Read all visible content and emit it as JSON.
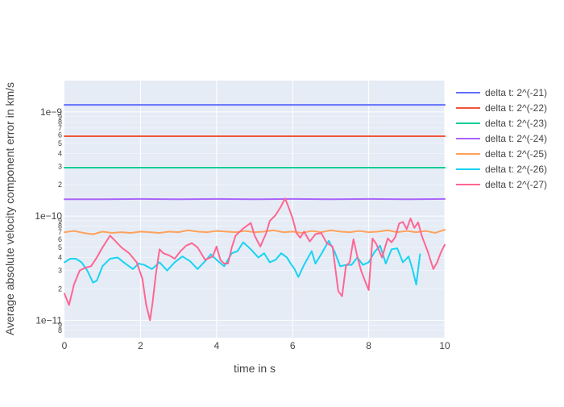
{
  "chart_data": {
    "type": "line",
    "xlabel": "time in s",
    "ylabel": "Average absolute velocity component error in km/s",
    "xlim": [
      0,
      10
    ],
    "ylim": [
      6.8e-12,
      2e-09
    ],
    "y_scale": "log",
    "grid": true,
    "legend_position": "right",
    "background": "#e5ecf6",
    "x_ticks": [
      0,
      2,
      4,
      6,
      8,
      10
    ],
    "x_tick_labels": [
      "0",
      "2",
      "4",
      "6",
      "8",
      "10"
    ],
    "y_major_ticks": [
      1e-11,
      1e-10,
      1e-09
    ],
    "y_major_tick_labels": [
      "1e−11",
      "1e−10",
      "1e−9"
    ],
    "y_minor_ticks": [
      {
        "value": 8e-12,
        "label": "8"
      },
      {
        "value": 9e-12,
        "label": "9"
      },
      {
        "value": 2e-11,
        "label": "2"
      },
      {
        "value": 3e-11,
        "label": "3"
      },
      {
        "value": 4e-11,
        "label": "4"
      },
      {
        "value": 5e-11,
        "label": "5"
      },
      {
        "value": 6e-11,
        "label": "6"
      },
      {
        "value": 7e-11,
        "label": "7"
      },
      {
        "value": 8e-11,
        "label": "8"
      },
      {
        "value": 9e-11,
        "label": "9"
      },
      {
        "value": 2e-10,
        "label": "2"
      },
      {
        "value": 3e-10,
        "label": "3"
      },
      {
        "value": 4e-10,
        "label": "4"
      },
      {
        "value": 5e-10,
        "label": "5"
      },
      {
        "value": 6e-10,
        "label": "6"
      },
      {
        "value": 7e-10,
        "label": "7"
      },
      {
        "value": 8e-10,
        "label": "8"
      },
      {
        "value": 9e-10,
        "label": "9"
      }
    ],
    "series": [
      {
        "name": "delta t: 2^(-21)",
        "color": "#636efa",
        "x": [
          0,
          10
        ],
        "y": [
          1.17e-09,
          1.17e-09
        ]
      },
      {
        "name": "delta t: 2^(-22)",
        "color": "#ef553b",
        "x": [
          0,
          10
        ],
        "y": [
          5.85e-10,
          5.85e-10
        ]
      },
      {
        "name": "delta t: 2^(-23)",
        "color": "#00cc96",
        "x": [
          0,
          10
        ],
        "y": [
          2.92e-10,
          2.92e-10
        ]
      },
      {
        "name": "delta t: 2^(-24)",
        "color": "#ab63fa",
        "x": [
          0,
          1,
          2,
          3,
          4,
          5,
          6,
          7,
          8,
          9,
          10
        ],
        "y": [
          1.45e-10,
          1.45e-10,
          1.46e-10,
          1.45e-10,
          1.46e-10,
          1.45e-10,
          1.46e-10,
          1.45e-10,
          1.46e-10,
          1.45e-10,
          1.46e-10
        ]
      },
      {
        "name": "delta t: 2^(-25)",
        "color": "#ffa15a",
        "x": [
          0,
          0.25,
          0.5,
          0.75,
          1.0,
          1.25,
          1.5,
          1.75,
          2.0,
          2.25,
          2.5,
          2.75,
          3.0,
          3.25,
          3.5,
          3.75,
          4.0,
          4.25,
          4.5,
          4.75,
          5.0,
          5.25,
          5.5,
          5.75,
          6.0,
          6.25,
          6.5,
          6.75,
          7.0,
          7.25,
          7.5,
          7.75,
          8.0,
          8.25,
          8.5,
          8.75,
          9.0,
          9.25,
          9.5,
          9.75,
          10.0
        ],
        "y": [
          7e-11,
          7.2e-11,
          6.9e-11,
          6.7e-11,
          7.1e-11,
          6.9e-11,
          7e-11,
          6.9e-11,
          7.1e-11,
          7e-11,
          6.9e-11,
          7.1e-11,
          7e-11,
          7.3e-11,
          7.1e-11,
          7e-11,
          7.2e-11,
          7.1e-11,
          7e-11,
          7.2e-11,
          7e-11,
          7.1e-11,
          7.3e-11,
          7e-11,
          7.1e-11,
          6.9e-11,
          7.2e-11,
          7e-11,
          7.3e-11,
          7.1e-11,
          7e-11,
          7.2e-11,
          7e-11,
          7.1e-11,
          7.3e-11,
          7e-11,
          7.2e-11,
          7e-11,
          7.2e-11,
          6.9e-11,
          7.4e-11
        ]
      },
      {
        "name": "delta t: 2^(-26)",
        "color": "#19d3f3",
        "x": [
          0,
          0.15,
          0.3,
          0.45,
          0.6,
          0.75,
          0.85,
          1.0,
          1.2,
          1.4,
          1.6,
          1.8,
          1.95,
          2.1,
          2.3,
          2.5,
          2.7,
          2.9,
          3.1,
          3.3,
          3.5,
          3.7,
          3.85,
          4.0,
          4.2,
          4.4,
          4.55,
          4.7,
          4.9,
          5.1,
          5.25,
          5.4,
          5.55,
          5.7,
          5.85,
          5.95,
          6.05,
          6.15,
          6.3,
          6.5,
          6.6,
          6.75,
          6.95,
          7.1,
          7.25,
          7.4,
          7.55,
          7.7,
          7.85,
          8.0,
          8.15,
          8.3,
          8.45,
          8.6,
          8.75,
          8.9,
          9.05,
          9.15,
          9.25,
          9.35
        ],
        "y": [
          3.6e-11,
          3.9e-11,
          3.9e-11,
          3.6e-11,
          3e-11,
          2.3e-11,
          2.4e-11,
          3.3e-11,
          3.9e-11,
          4e-11,
          3.5e-11,
          3.1e-11,
          3.5e-11,
          3.4e-11,
          3.1e-11,
          3.6e-11,
          3e-11,
          3.6e-11,
          4.1e-11,
          3.7e-11,
          3.1e-11,
          3.7e-11,
          4.3e-11,
          3.8e-11,
          3.3e-11,
          4.4e-11,
          4.6e-11,
          5.6e-11,
          4.8e-11,
          4e-11,
          4.4e-11,
          3.6e-11,
          3.8e-11,
          4.4e-11,
          4e-11,
          3.5e-11,
          3.1e-11,
          2.6e-11,
          3.4e-11,
          4.6e-11,
          3.5e-11,
          4.3e-11,
          5.8e-11,
          4.6e-11,
          3.3e-11,
          3.4e-11,
          3.4e-11,
          4e-11,
          3.4e-11,
          3.6e-11,
          4.5e-11,
          5.2e-11,
          3.5e-11,
          4.8e-11,
          4.9e-11,
          3.6e-11,
          4.1e-11,
          3.1e-11,
          2.2e-11,
          4.3e-11
        ]
      },
      {
        "name": "delta t: 2^(-27)",
        "color": "#ff6692",
        "x": [
          0,
          0.12,
          0.25,
          0.4,
          0.55,
          0.7,
          0.85,
          1.0,
          1.2,
          1.35,
          1.5,
          1.7,
          1.9,
          2.05,
          2.15,
          2.25,
          2.32,
          2.4,
          2.5,
          2.6,
          2.75,
          2.9,
          3.05,
          3.2,
          3.35,
          3.5,
          3.7,
          3.9,
          4.0,
          4.1,
          4.2,
          4.3,
          4.4,
          4.5,
          4.7,
          4.9,
          5.0,
          5.15,
          5.3,
          5.4,
          5.55,
          5.7,
          5.8,
          5.9,
          6.0,
          6.1,
          6.2,
          6.3,
          6.45,
          6.6,
          6.75,
          6.9,
          7.05,
          7.2,
          7.3,
          7.4,
          7.5,
          7.6,
          7.7,
          7.8,
          7.9,
          8.0,
          8.1,
          8.2,
          8.35,
          8.5,
          8.6,
          8.7,
          8.8,
          8.9,
          9.0,
          9.1,
          9.2,
          9.3,
          9.4,
          9.55,
          9.7,
          9.8,
          9.9,
          10.0
        ],
        "y": [
          1.8e-11,
          1.4e-11,
          2.2e-11,
          3e-11,
          3.2e-11,
          3.3e-11,
          4e-11,
          5e-11,
          6.5e-11,
          5.7e-11,
          5e-11,
          4.4e-11,
          3.6e-11,
          2.5e-11,
          1.4e-11,
          1e-11,
          1.5e-11,
          2.7e-11,
          4.8e-11,
          4.4e-11,
          4.2e-11,
          3.9e-11,
          4.6e-11,
          5.2e-11,
          5.5e-11,
          5e-11,
          3.8e-11,
          4.1e-11,
          5.1e-11,
          3.8e-11,
          3.5e-11,
          3.5e-11,
          5e-11,
          6.5e-11,
          7.6e-11,
          8.6e-11,
          6.5e-11,
          5.1e-11,
          6.8e-11,
          9e-11,
          1.02e-10,
          1.25e-10,
          1.48e-10,
          1.2e-10,
          9.5e-11,
          6.9e-11,
          6.2e-11,
          7.1e-11,
          5.7e-11,
          6.7e-11,
          6.9e-11,
          5.5e-11,
          5.1e-11,
          1.9e-11,
          1.7e-11,
          3.3e-11,
          3.6e-11,
          6e-11,
          4.1e-11,
          3e-11,
          2.4e-11,
          1.95e-11,
          6.1e-11,
          5.4e-11,
          4e-11,
          6.1e-11,
          5.6e-11,
          6.3e-11,
          8.5e-11,
          8.8e-11,
          7.5e-11,
          9.5e-11,
          7.7e-11,
          8.7e-11,
          6.4e-11,
          4.6e-11,
          3.1e-11,
          3.6e-11,
          4.5e-11,
          5.3e-11
        ]
      }
    ]
  }
}
